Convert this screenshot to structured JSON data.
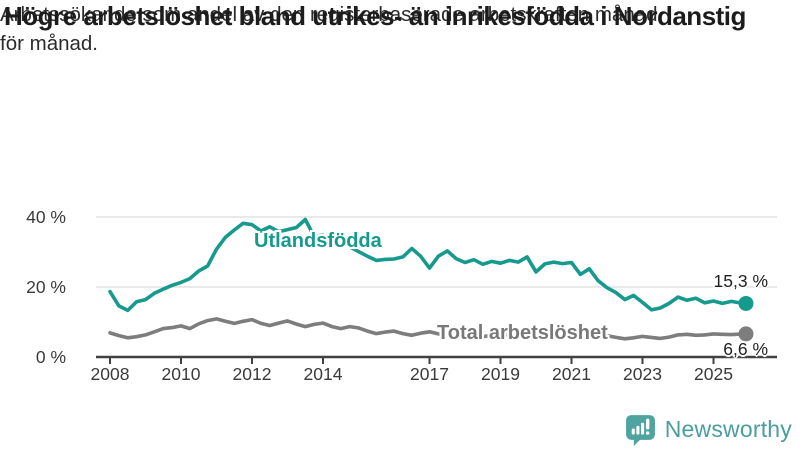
{
  "header": {
    "title": "Högre arbetslöshet bland utrikes- än inrikesfödda i Nordanstig",
    "subtitle_lines": [
      "Arbetssökande som andel av den registerbaserade arbetskraften månad",
      "för månad."
    ]
  },
  "footer": {
    "brand": "Newsworthy",
    "brand_color": "#4a9e9d"
  },
  "chart_data": {
    "type": "line",
    "title": "",
    "xlabel": "",
    "ylabel": "",
    "grid": true,
    "legend_position": "inline-labels",
    "x_unit": "year (monthly data)",
    "y_unit": "percent",
    "ylim": [
      0,
      42
    ],
    "xlim": [
      2008,
      2025.92
    ],
    "y_ticks": [
      {
        "label": "0 %",
        "value": 0
      },
      {
        "label": "20 %",
        "value": 20
      },
      {
        "label": "40 %",
        "value": 40
      }
    ],
    "x_ticks": [
      {
        "label": "2008",
        "year": 2008
      },
      {
        "label": "2010",
        "year": 2010
      },
      {
        "label": "2012",
        "year": 2012
      },
      {
        "label": "2014",
        "year": 2014
      },
      {
        "label": "2017",
        "year": 2017
      },
      {
        "label": "2019",
        "year": 2019
      },
      {
        "label": "2021",
        "year": 2021
      },
      {
        "label": "2023",
        "year": 2023
      },
      {
        "label": "2025",
        "year": 2025
      }
    ],
    "x": [
      2008,
      2008.25,
      2008.5,
      2008.75,
      2009,
      2009.25,
      2009.5,
      2009.75,
      2010,
      2010.25,
      2010.5,
      2010.75,
      2011,
      2011.25,
      2011.5,
      2011.75,
      2012,
      2012.25,
      2012.5,
      2012.75,
      2013,
      2013.25,
      2013.5,
      2013.75,
      2014,
      2014.25,
      2014.5,
      2014.75,
      2015,
      2015.25,
      2015.5,
      2015.75,
      2016,
      2016.25,
      2016.5,
      2016.75,
      2017,
      2017.25,
      2017.5,
      2017.75,
      2018,
      2018.25,
      2018.5,
      2018.75,
      2019,
      2019.25,
      2019.5,
      2019.75,
      2020,
      2020.25,
      2020.5,
      2020.75,
      2021,
      2021.25,
      2021.5,
      2021.75,
      2022,
      2022.25,
      2022.5,
      2022.75,
      2023,
      2023.25,
      2023.5,
      2023.75,
      2024,
      2024.25,
      2024.5,
      2024.75,
      2025,
      2025.25,
      2025.5,
      2025.83
    ],
    "series": [
      {
        "name": "Utlandsfödda",
        "color": "#169a8d",
        "end_label": "15,3 %",
        "end_value": 15.3,
        "values": [
          18.7,
          14.6,
          13.3,
          15.8,
          16.4,
          18.2,
          19.4,
          20.5,
          21.3,
          22.4,
          24.6,
          26.0,
          30.8,
          34.2,
          36.3,
          38.2,
          37.8,
          36.0,
          37.2,
          35.8,
          36.4,
          37.0,
          39.3,
          34.5,
          34.8,
          33.0,
          32.3,
          31.5,
          30.1,
          28.8,
          27.6,
          27.9,
          28.0,
          28.6,
          31.0,
          28.8,
          25.4,
          28.8,
          30.3,
          28.1,
          27.0,
          27.8,
          26.5,
          27.3,
          26.8,
          27.6,
          27.1,
          28.6,
          24.3,
          26.6,
          27.1,
          26.7,
          27.0,
          23.6,
          25.2,
          21.8,
          19.8,
          18.4,
          16.4,
          17.6,
          15.6,
          13.5,
          14.0,
          15.3,
          17.1,
          16.2,
          16.8,
          15.5,
          16.0,
          15.3,
          15.9,
          15.3
        ]
      },
      {
        "name": "Total arbetslöshet",
        "color": "#7d7d7d",
        "end_label": "6,6 %",
        "end_value": 6.6,
        "values": [
          6.9,
          6.1,
          5.5,
          5.8,
          6.3,
          7.2,
          8.1,
          8.4,
          8.9,
          8.1,
          9.5,
          10.4,
          10.9,
          10.2,
          9.6,
          10.2,
          10.7,
          9.6,
          9.0,
          9.7,
          10.3,
          9.4,
          8.7,
          9.3,
          9.7,
          8.7,
          8.1,
          8.7,
          8.3,
          7.4,
          6.7,
          7.1,
          7.4,
          6.7,
          6.2,
          6.8,
          7.2,
          6.6,
          6.1,
          6.5,
          7.0,
          6.3,
          5.8,
          6.2,
          6.7,
          6.2,
          5.8,
          6.3,
          6.9,
          7.5,
          7.1,
          6.8,
          7.1,
          6.5,
          6.0,
          5.8,
          6.1,
          5.6,
          5.2,
          5.5,
          5.9,
          5.6,
          5.3,
          5.7,
          6.3,
          6.5,
          6.2,
          6.3,
          6.6,
          6.5,
          6.4,
          6.6
        ]
      }
    ]
  }
}
